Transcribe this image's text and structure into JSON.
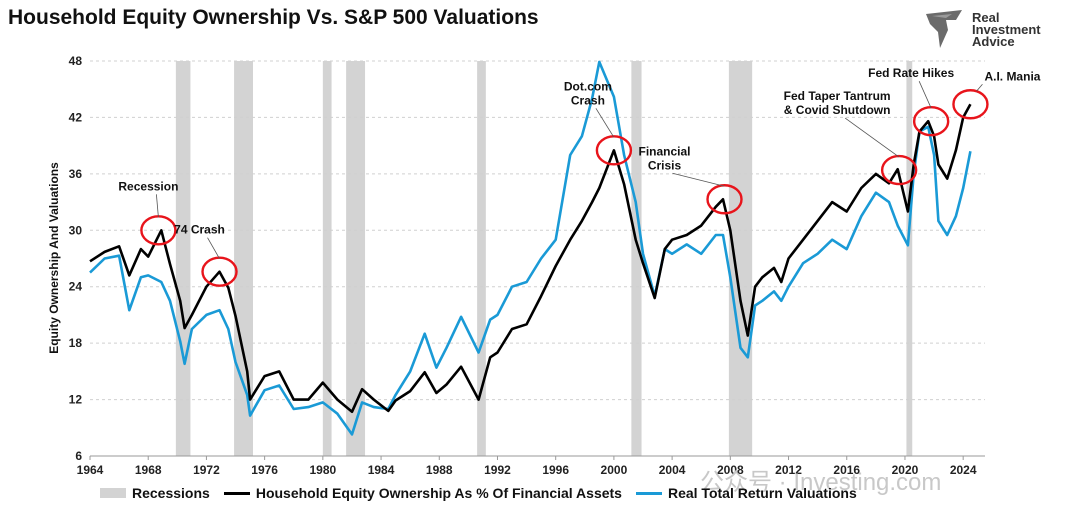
{
  "title": "Household Equity Ownership Vs. S&P 500 Valuations",
  "logo": {
    "line1": "Real",
    "line2": "Investment",
    "line3": "Advice"
  },
  "watermark": "公众号 · Investing.com",
  "colors": {
    "equity": "#000000",
    "valuation": "#1a9ad6",
    "recession": "#d3d3d3",
    "circle": "#e8141b"
  },
  "chart_data": {
    "type": "line",
    "ylabel": "Equity Ownership And Valuations",
    "xlim": [
      1964,
      2025.5
    ],
    "ylim": [
      6,
      48
    ],
    "yticks": [
      6,
      12,
      18,
      24,
      30,
      36,
      42,
      48
    ],
    "xticks": [
      1964,
      1968,
      1972,
      1976,
      1980,
      1984,
      1988,
      1992,
      1996,
      2000,
      2004,
      2008,
      2012,
      2016,
      2020,
      2024
    ],
    "recessions": [
      [
        1969.9,
        1970.9
      ],
      [
        1973.9,
        1975.2
      ],
      [
        1980.0,
        1980.6
      ],
      [
        1981.6,
        1982.9
      ],
      [
        1990.6,
        1991.2
      ],
      [
        2001.2,
        2001.9
      ],
      [
        2007.9,
        2009.5
      ],
      [
        2020.1,
        2020.5
      ]
    ],
    "series": [
      {
        "name": "Household Equity Ownership As % Of Financial Assets",
        "x": [
          1964,
          1965,
          1966,
          1966.7,
          1967.5,
          1968,
          1968.9,
          1969.5,
          1970.2,
          1970.5,
          1971,
          1972,
          1972.9,
          1973.5,
          1974,
          1974.8,
          1975,
          1976,
          1977,
          1978,
          1979,
          1980,
          1981,
          1982,
          1982.7,
          1983.5,
          1984.5,
          1985,
          1986,
          1987,
          1987.8,
          1988.5,
          1989.5,
          1990.7,
          1991.5,
          1992,
          1993,
          1994,
          1995,
          1996,
          1997,
          1997.8,
          1998.5,
          1999,
          2000,
          2000.7,
          2001.5,
          2002,
          2002.8,
          2003.5,
          2004,
          2005,
          2006,
          2007,
          2007.5,
          2008,
          2008.7,
          2009.2,
          2009.7,
          2010.2,
          2011,
          2011.5,
          2012,
          2013,
          2014,
          2015,
          2016,
          2017,
          2018,
          2018.9,
          2019.5,
          2020.2,
          2020.6,
          2021,
          2021.6,
          2022,
          2022.3,
          2022.9,
          2023.5,
          2024,
          2024.5
        ],
        "values": [
          26.7,
          27.7,
          28.3,
          25.2,
          28.0,
          27.2,
          30.0,
          26.4,
          22.5,
          19.6,
          21.0,
          24.0,
          25.6,
          23.9,
          20.9,
          15.0,
          12.0,
          14.5,
          15.0,
          12.0,
          12.0,
          13.8,
          12.0,
          10.7,
          13.1,
          12.0,
          10.8,
          11.9,
          12.9,
          14.9,
          12.7,
          13.6,
          15.5,
          12.0,
          16.5,
          17.0,
          19.5,
          20.0,
          23.0,
          26.2,
          29.0,
          31.0,
          33.0,
          34.5,
          38.5,
          34.9,
          29.0,
          26.5,
          22.8,
          28.0,
          29.0,
          29.5,
          30.5,
          32.5,
          33.3,
          30.0,
          22.5,
          18.8,
          24.0,
          25.0,
          26.0,
          24.5,
          27.0,
          29.0,
          31.0,
          33.0,
          32.0,
          34.5,
          36.0,
          35.0,
          36.5,
          32.0,
          37.0,
          40.5,
          41.6,
          40.0,
          37.0,
          35.5,
          38.5,
          42.0,
          43.4
        ]
      },
      {
        "name": "Real Total Return Valuations",
        "x": [
          1964,
          1965,
          1966,
          1966.7,
          1967.5,
          1968,
          1968.9,
          1969.5,
          1970.2,
          1970.5,
          1971,
          1972,
          1972.9,
          1973.5,
          1974,
          1974.8,
          1975,
          1976,
          1977,
          1978,
          1979,
          1980,
          1981,
          1982,
          1982.7,
          1983.5,
          1984.5,
          1985,
          1986,
          1987,
          1987.8,
          1988.5,
          1989.5,
          1990.7,
          1991.5,
          1992,
          1993,
          1994,
          1995,
          1996,
          1997,
          1997.8,
          1998.5,
          1999,
          2000,
          2000.7,
          2001.5,
          2002,
          2002.8,
          2003.5,
          2004,
          2005,
          2006,
          2007,
          2007.5,
          2008,
          2008.7,
          2009.2,
          2009.7,
          2010.2,
          2011,
          2011.5,
          2012,
          2013,
          2014,
          2015,
          2016,
          2017,
          2018,
          2018.9,
          2019.5,
          2020.2,
          2020.6,
          2021,
          2021.6,
          2022,
          2022.3,
          2022.9,
          2023.5,
          2024,
          2024.5
        ],
        "values": [
          25.5,
          27.0,
          27.3,
          21.5,
          25.0,
          25.2,
          24.5,
          22.5,
          18.2,
          15.8,
          19.5,
          21.0,
          21.5,
          19.5,
          16.0,
          12.5,
          10.3,
          13.0,
          13.5,
          11.0,
          11.2,
          11.7,
          10.5,
          8.3,
          11.7,
          11.2,
          11.0,
          12.5,
          15.0,
          19.0,
          15.4,
          17.5,
          20.8,
          17.0,
          20.5,
          21.0,
          24.0,
          24.5,
          27.0,
          29.0,
          38.0,
          40.0,
          44.0,
          47.9,
          44.2,
          38.0,
          33.0,
          27.5,
          23.0,
          28.0,
          27.5,
          28.5,
          27.5,
          29.5,
          29.5,
          25.0,
          17.5,
          16.5,
          22.0,
          22.5,
          23.5,
          22.5,
          24.0,
          26.5,
          27.5,
          29.0,
          28.0,
          31.5,
          34.0,
          33.0,
          30.5,
          28.4,
          36.0,
          40.5,
          41.0,
          38.0,
          31.0,
          29.5,
          31.5,
          34.5,
          38.4
        ]
      }
    ],
    "annotations": [
      {
        "text": "Recession",
        "x": 1968.7,
        "y": 30.0,
        "lines": [
          "Recession"
        ]
      },
      {
        "text": "74 Crash",
        "x": 1972.9,
        "y": 25.6,
        "lines": [
          "74 Crash"
        ]
      },
      {
        "text": "Dot.com Crash",
        "x": 2000.0,
        "y": 38.5,
        "lines": [
          "Dot.com",
          "Crash"
        ]
      },
      {
        "text": "Financial Crisis",
        "x": 2007.6,
        "y": 33.3,
        "lines": [
          "Financial",
          "Crisis"
        ]
      },
      {
        "text": "Fed Taper Tantrum & Covid Shutdown",
        "x": 2019.6,
        "y": 36.4,
        "lines": [
          "Fed Taper Tantrum",
          "& Covid Shutdown"
        ]
      },
      {
        "text": "Fed Rate Hikes",
        "x": 2021.8,
        "y": 41.6,
        "lines": [
          "Fed Rate Hikes"
        ]
      },
      {
        "text": "A.I. Mania",
        "x": 2024.5,
        "y": 43.4,
        "lines": [
          "A.I. Mania"
        ]
      }
    ],
    "legend": {
      "placement": "bottom",
      "recessions_label": "Recessions",
      "equity_label": "Household Equity Ownership As % Of Financial Assets",
      "valuation_label": "Real Total Return Valuations"
    }
  }
}
